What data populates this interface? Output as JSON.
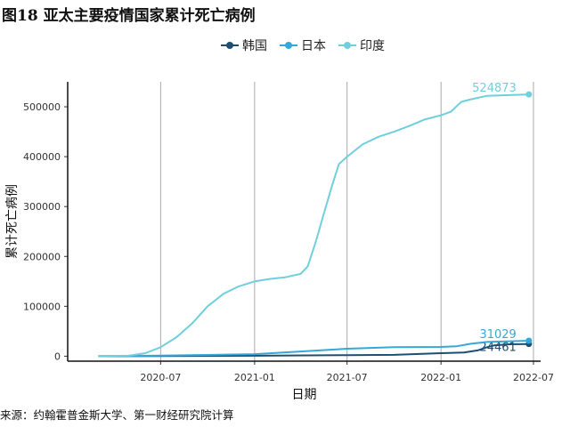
{
  "title": "图18 亚太主要疫情国家累计死亡病例",
  "source": "来源：约翰霍普金斯大学、第一财经研究院计算",
  "chart_data": {
    "type": "line",
    "xlabel": "日期",
    "ylabel": "累计死亡病例",
    "x_ticks": [
      "2020-07",
      "2021-01",
      "2021-07",
      "2022-01",
      "2022-07"
    ],
    "y_ticks": [
      "0",
      "100000",
      "200000",
      "300000",
      "400000",
      "500000"
    ],
    "ylim": [
      -10000,
      550000
    ],
    "xlim": [
      "2020-01-01",
      "2022-07-15"
    ],
    "grid": "vertical lines at x ticks",
    "legend_position": "top",
    "series": [
      {
        "name": "韩国",
        "color": "#1d4e73",
        "end_label": "24461",
        "points": [
          [
            "2020-03-01",
            0
          ],
          [
            "2020-07-01",
            300
          ],
          [
            "2021-01-01",
            900
          ],
          [
            "2021-07-01",
            2050
          ],
          [
            "2021-10-01",
            2600
          ],
          [
            "2022-01-01",
            6000
          ],
          [
            "2022-02-15",
            7500
          ],
          [
            "2022-03-15",
            12000
          ],
          [
            "2022-04-01",
            18000
          ],
          [
            "2022-04-15",
            21500
          ],
          [
            "2022-05-15",
            23800
          ],
          [
            "2022-06-22",
            24461
          ]
        ]
      },
      {
        "name": "日本",
        "color": "#35a8d8",
        "end_label": "31029",
        "points": [
          [
            "2020-03-01",
            0
          ],
          [
            "2020-07-01",
            1000
          ],
          [
            "2021-01-01",
            4000
          ],
          [
            "2021-04-01",
            9500
          ],
          [
            "2021-07-01",
            15000
          ],
          [
            "2021-10-01",
            18000
          ],
          [
            "2022-01-01",
            18500
          ],
          [
            "2022-02-01",
            20000
          ],
          [
            "2022-03-01",
            25000
          ],
          [
            "2022-04-01",
            28500
          ],
          [
            "2022-06-22",
            31029
          ]
        ]
      },
      {
        "name": "印度",
        "color": "#6fd0dc",
        "end_label": "524873",
        "points": [
          [
            "2020-03-01",
            0
          ],
          [
            "2020-05-01",
            1000
          ],
          [
            "2020-06-01",
            6000
          ],
          [
            "2020-07-01",
            18000
          ],
          [
            "2020-08-01",
            38000
          ],
          [
            "2020-09-01",
            66000
          ],
          [
            "2020-10-01",
            100000
          ],
          [
            "2020-11-01",
            125000
          ],
          [
            "2020-12-01",
            140000
          ],
          [
            "2021-01-01",
            150000
          ],
          [
            "2021-02-01",
            155000
          ],
          [
            "2021-03-01",
            158000
          ],
          [
            "2021-04-01",
            165000
          ],
          [
            "2021-04-15",
            180000
          ],
          [
            "2021-05-01",
            230000
          ],
          [
            "2021-05-15",
            280000
          ],
          [
            "2021-06-01",
            340000
          ],
          [
            "2021-06-15",
            385000
          ],
          [
            "2021-07-01",
            400000
          ],
          [
            "2021-08-01",
            425000
          ],
          [
            "2021-09-01",
            440000
          ],
          [
            "2021-10-01",
            450000
          ],
          [
            "2021-11-01",
            462000
          ],
          [
            "2021-12-01",
            475000
          ],
          [
            "2022-01-01",
            483000
          ],
          [
            "2022-01-20",
            490000
          ],
          [
            "2022-02-10",
            510000
          ],
          [
            "2022-03-01",
            515000
          ],
          [
            "2022-04-01",
            522000
          ],
          [
            "2022-06-22",
            524873
          ]
        ]
      }
    ]
  }
}
